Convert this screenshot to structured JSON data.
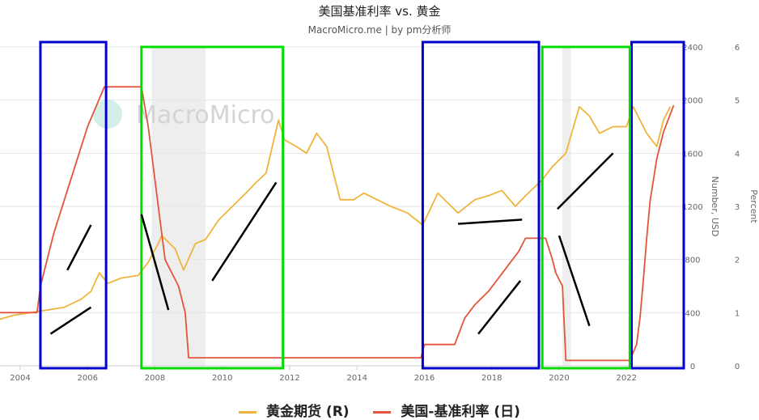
{
  "header": {
    "title": "美国基准利率 vs. 黄金",
    "subtitle": "MacroMicro.me | by pm分析师"
  },
  "watermark": {
    "text": "MacroMicro"
  },
  "colors": {
    "gold": "#f0b43c",
    "rate": "#e2553b",
    "recession_band": "#eeeeee",
    "blue_box": "#0000d0",
    "green_box": "#00dd00",
    "annotation": "#000000",
    "grid": "#e6e6e6",
    "axis_text": "#666666"
  },
  "legend": [
    {
      "label": "黄金期货 (R)",
      "color": "#f0b43c"
    },
    {
      "label": "美国-基准利率 (日)",
      "color": "#e2553b"
    }
  ],
  "chart_data": {
    "type": "line",
    "title": "美国基准利率 vs. 黄金",
    "subtitle": "MacroMicro.me | by pm分析师",
    "x_range": [
      2003.4,
      2023.7
    ],
    "x_ticks": [
      "2004",
      "2006",
      "2008",
      "2010",
      "2012",
      "2014",
      "2016",
      "2018",
      "2020",
      "2022"
    ],
    "y_right_inner": {
      "label": "Number, USD",
      "range": [
        0,
        2400
      ],
      "ticks": [
        "0",
        "400",
        "800",
        "1200",
        "1600",
        "2000",
        "2400"
      ]
    },
    "y_right_outer": {
      "label": "Percent",
      "range": [
        0,
        6
      ],
      "ticks": [
        "0",
        "1",
        "2",
        "3",
        "4",
        "5",
        "6"
      ]
    },
    "grid": true,
    "legend_position": "bottom",
    "series": [
      {
        "name": "黄金期货 (R)",
        "axis": "y_right_inner",
        "x": [
          2003.4,
          2003.8,
          2004.3,
          2004.8,
          2005.3,
          2005.8,
          2006.1,
          2006.35,
          2006.6,
          2007.0,
          2007.5,
          2007.8,
          2008.1,
          2008.2,
          2008.6,
          2008.85,
          2009.2,
          2009.5,
          2009.9,
          2010.3,
          2010.7,
          2011.0,
          2011.3,
          2011.67,
          2011.85,
          2012.2,
          2012.5,
          2012.8,
          2013.1,
          2013.35,
          2013.5,
          2013.9,
          2014.2,
          2014.6,
          2015.0,
          2015.5,
          2015.95,
          2016.4,
          2016.8,
          2017.0,
          2017.5,
          2017.9,
          2018.3,
          2018.7,
          2019.0,
          2019.5,
          2019.8,
          2020.2,
          2020.6,
          2020.9,
          2021.2,
          2021.6,
          2022.0,
          2022.2,
          2022.6,
          2022.9,
          2023.1,
          2023.3
        ],
        "values": [
          350,
          380,
          400,
          420,
          440,
          500,
          560,
          700,
          620,
          660,
          680,
          780,
          920,
          980,
          880,
          720,
          920,
          950,
          1100,
          1200,
          1300,
          1380,
          1450,
          1850,
          1700,
          1650,
          1600,
          1750,
          1650,
          1400,
          1250,
          1250,
          1300,
          1250,
          1200,
          1150,
          1060,
          1300,
          1200,
          1150,
          1250,
          1280,
          1320,
          1200,
          1280,
          1400,
          1500,
          1600,
          1950,
          1880,
          1750,
          1800,
          1800,
          1950,
          1750,
          1650,
          1850,
          1950
        ]
      },
      {
        "name": "美国-基准利率 (日)",
        "axis": "y_right_outer",
        "x": [
          2003.4,
          2004.5,
          2004.6,
          2005.0,
          2005.5,
          2006.0,
          2006.5,
          2007.6,
          2007.8,
          2008.1,
          2008.3,
          2008.7,
          2008.9,
          2009.0,
          2015.9,
          2016.0,
          2016.9,
          2017.2,
          2017.5,
          2017.9,
          2018.2,
          2018.5,
          2018.8,
          2019.0,
          2019.6,
          2019.8,
          2019.9,
          2020.1,
          2020.2,
          2022.1,
          2022.3,
          2022.4,
          2022.5,
          2022.6,
          2022.7,
          2022.9,
          2023.1,
          2023.4
        ],
        "values": [
          1.0,
          1.0,
          1.5,
          2.5,
          3.5,
          4.5,
          5.25,
          5.25,
          4.5,
          3.0,
          2.0,
          1.5,
          1.0,
          0.15,
          0.15,
          0.4,
          0.4,
          0.9,
          1.15,
          1.4,
          1.65,
          1.9,
          2.15,
          2.4,
          2.4,
          2.0,
          1.75,
          1.5,
          0.1,
          0.1,
          0.4,
          0.9,
          1.6,
          2.4,
          3.1,
          3.9,
          4.4,
          4.9
        ]
      }
    ],
    "recession_bands": [
      [
        2007.9,
        2009.5
      ],
      [
        2020.1,
        2020.35
      ]
    ],
    "annotations": {
      "blue_boxes": [
        [
          2004.6,
          2006.55
        ],
        [
          2015.95,
          2019.4
        ],
        [
          2022.15,
          2023.7
        ]
      ],
      "green_boxes": [
        [
          2007.6,
          2011.8
        ],
        [
          2019.5,
          2022.1
        ]
      ],
      "lines": [
        {
          "x1": 2004.9,
          "y1": 0.6,
          "x2": 2006.1,
          "y2": 1.1
        },
        {
          "x1": 2005.4,
          "y1": 1.8,
          "x2": 2006.1,
          "y2": 2.65
        },
        {
          "x1": 2007.6,
          "y1": 2.85,
          "x2": 2008.4,
          "y2": 1.05
        },
        {
          "x1": 2009.7,
          "y1": 1.6,
          "x2": 2011.6,
          "y2": 3.45
        },
        {
          "x1": 2017.0,
          "y1": 2.67,
          "x2": 2018.9,
          "y2": 2.75
        },
        {
          "x1": 2017.6,
          "y1": 0.6,
          "x2": 2018.85,
          "y2": 1.6
        },
        {
          "x1": 2019.95,
          "y1": 2.95,
          "x2": 2021.6,
          "y2": 4.0
        },
        {
          "x1": 2020.0,
          "y1": 2.45,
          "x2": 2020.9,
          "y2": 0.75
        }
      ]
    }
  }
}
